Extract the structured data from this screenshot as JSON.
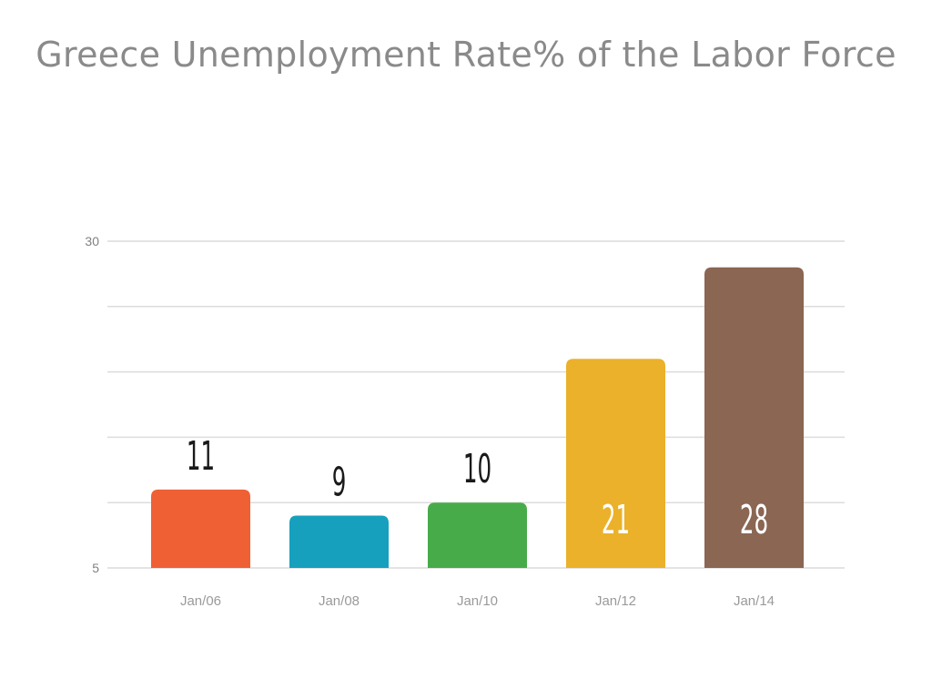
{
  "chart_data": {
    "type": "bar",
    "title": "Greece Unemployment Rate% of the Labor Force",
    "xlabel": "",
    "ylabel": "",
    "categories": [
      "Jan/06",
      "Jan/08",
      "Jan/10",
      "Jan/12",
      "Jan/14"
    ],
    "values": [
      11,
      9,
      10,
      21,
      28
    ],
    "value_labels": [
      "11",
      "9",
      "10",
      "21",
      "28"
    ],
    "ylim": [
      5,
      30
    ],
    "y_ticks": [
      "5",
      "30"
    ],
    "grid": true,
    "colors": [
      "#f06035",
      "#16a0bd",
      "#48ab4a",
      "#ebb12a",
      "#8a6653"
    ],
    "label_colors": [
      "#1a1a1a",
      "#1a1a1a",
      "#1a1a1a",
      "#ffffff",
      "#ffffff"
    ],
    "label_inside": [
      false,
      false,
      false,
      true,
      true
    ],
    "gridline_color": "#dcdcdc"
  }
}
